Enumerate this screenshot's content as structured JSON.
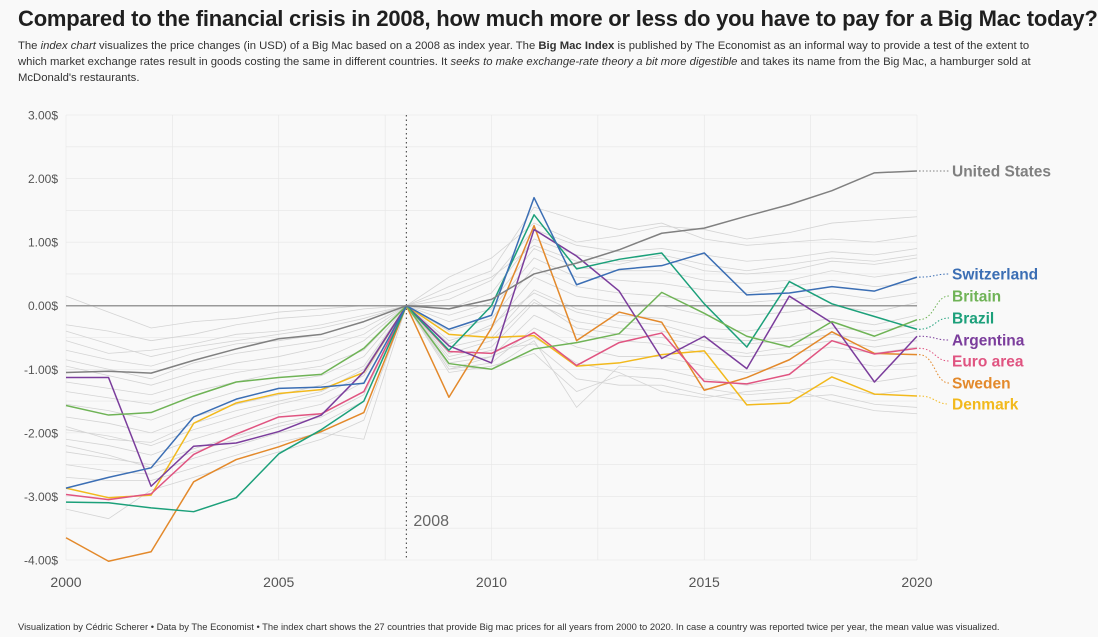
{
  "title": "Compared to the financial crisis in 2008, how much more or less do you have to pay for a Big Mac today?",
  "subtitle": {
    "p1": "The ",
    "em1": "index chart",
    "p2": " visualizes the price changes (in USD) of a Big Mac based on a 2008 as index year. The ",
    "b1": "Big Mac Index",
    "p3": " is published by The Economist as an informal way to provide a test of the extent to which market exchange rates result in goods costing the same in different countries. It ",
    "em2": "seeks to make exchange-rate theory a bit more digestible",
    "p4": " and takes its name from the Big Mac, a hamburger sold at McDonald's restaurants."
  },
  "caption": "Visualization by Cédric Scherer  •  Data by The Economist  •  The index chart shows the 27 countries that provide Big mac prices for all years from 2000 to 2020. In case a country was reported twice per year, the mean value was visualized.",
  "chart_data": {
    "type": "line",
    "xlim": [
      2000,
      2020
    ],
    "ylim": [
      -4,
      3
    ],
    "x_ticks": [
      "2000",
      "2005",
      "2010",
      "2015",
      "2020"
    ],
    "y_ticks": [
      "3.00$",
      "2.00$",
      "1.00$",
      "0.00$",
      "-1.00$",
      "-2.00$",
      "-3.00$",
      "-4.00$"
    ],
    "reference_year_label": "2008",
    "grid": true,
    "x": [
      2000,
      2001,
      2002,
      2003,
      2004,
      2005,
      2006,
      2007,
      2008,
      2009,
      2010,
      2011,
      2012,
      2013,
      2014,
      2015,
      2016,
      2017,
      2018,
      2019,
      2020
    ],
    "series": [
      {
        "name": "United States",
        "color": "#808080",
        "values": [
          -1.05,
          -1.03,
          -1.06,
          -0.86,
          -0.68,
          -0.52,
          -0.45,
          -0.25,
          0.0,
          -0.05,
          0.1,
          0.5,
          0.67,
          0.88,
          1.14,
          1.22,
          1.41,
          1.59,
          1.81,
          2.09,
          2.12
        ]
      },
      {
        "name": "Switzerland",
        "color": "#3b6eb4",
        "values": [
          -2.87,
          -2.7,
          -2.55,
          -1.75,
          -1.47,
          -1.3,
          -1.28,
          -1.22,
          0.0,
          -0.37,
          -0.15,
          1.7,
          0.33,
          0.57,
          0.63,
          0.83,
          0.17,
          0.2,
          0.3,
          0.23,
          0.45
        ]
      },
      {
        "name": "Britain",
        "color": "#6fb356",
        "values": [
          -1.57,
          -1.72,
          -1.68,
          -1.42,
          -1.2,
          -1.13,
          -1.08,
          -0.67,
          0.0,
          -0.91,
          -1.0,
          -0.68,
          -0.58,
          -0.44,
          0.21,
          -0.12,
          -0.48,
          -0.65,
          -0.25,
          -0.48,
          -0.22
        ]
      },
      {
        "name": "Brazil",
        "color": "#1ca07a",
        "values": [
          -3.09,
          -3.1,
          -3.18,
          -3.24,
          -3.02,
          -2.33,
          -1.95,
          -1.5,
          0.0,
          -0.7,
          0.0,
          1.43,
          0.58,
          0.73,
          0.83,
          0.03,
          -0.65,
          0.38,
          0.03,
          -0.17,
          -0.37
        ]
      },
      {
        "name": "Argentina",
        "color": "#7b3d9c",
        "values": [
          -1.13,
          -1.13,
          -2.84,
          -2.21,
          -2.16,
          -1.98,
          -1.72,
          -1.04,
          0.0,
          -0.63,
          -0.9,
          1.2,
          0.78,
          0.23,
          -0.83,
          -0.48,
          -0.99,
          0.15,
          -0.27,
          -1.2,
          -0.48
        ]
      },
      {
        "name": "Euro area",
        "color": "#e05481",
        "values": [
          -2.97,
          -3.05,
          -2.96,
          -2.34,
          -2.02,
          -1.75,
          -1.7,
          -1.35,
          0.0,
          -0.72,
          -0.75,
          -0.42,
          -0.94,
          -0.58,
          -0.43,
          -1.19,
          -1.23,
          -1.08,
          -0.55,
          -0.76,
          -0.67
        ]
      },
      {
        "name": "Sweden",
        "color": "#e3892b",
        "values": [
          -3.65,
          -4.02,
          -3.87,
          -2.77,
          -2.42,
          -2.22,
          -1.98,
          -1.68,
          0.0,
          -1.44,
          -0.35,
          1.26,
          -0.55,
          -0.1,
          -0.26,
          -1.33,
          -1.13,
          -0.85,
          -0.41,
          -0.75,
          -0.77
        ]
      },
      {
        "name": "Denmark",
        "color": "#f2b91c",
        "values": [
          -2.87,
          -3.02,
          -2.98,
          -1.85,
          -1.53,
          -1.38,
          -1.32,
          -1.05,
          0.0,
          -0.45,
          -0.5,
          -0.47,
          -0.95,
          -0.9,
          -0.77,
          -0.71,
          -1.56,
          -1.53,
          -1.12,
          -1.39,
          -1.42
        ]
      }
    ],
    "background_series": [
      [
        0.15,
        -0.1,
        -0.35,
        -0.25,
        -0.2,
        -0.1,
        -0.05,
        0.0,
        0.0,
        0.45,
        0.75,
        1.3,
        1.0,
        1.1,
        1.25,
        1.2,
        1.05,
        1.15,
        1.3,
        1.35,
        1.4
      ],
      [
        -0.3,
        -0.4,
        -0.55,
        -0.45,
        -0.3,
        -0.2,
        -0.15,
        -0.05,
        0.0,
        0.3,
        0.55,
        1.55,
        1.35,
        1.2,
        1.3,
        1.05,
        0.95,
        1.0,
        1.05,
        1.0,
        1.1
      ],
      [
        -0.55,
        -0.75,
        -0.7,
        -0.6,
        -0.45,
        -0.4,
        -0.3,
        -0.15,
        0.0,
        0.1,
        0.4,
        1.2,
        0.95,
        0.85,
        0.9,
        0.8,
        0.7,
        0.75,
        0.85,
        0.8,
        0.9
      ],
      [
        -0.7,
        -0.85,
        -0.95,
        -0.75,
        -0.6,
        -0.55,
        -0.45,
        -0.25,
        0.0,
        -0.05,
        0.2,
        1.05,
        0.8,
        0.7,
        0.75,
        0.55,
        0.5,
        0.55,
        0.7,
        0.65,
        0.75
      ],
      [
        -0.85,
        -1.0,
        -1.15,
        -0.9,
        -0.75,
        -0.65,
        -0.55,
        -0.35,
        0.0,
        -0.15,
        0.05,
        0.9,
        0.6,
        0.55,
        0.55,
        0.4,
        0.35,
        0.4,
        0.55,
        0.45,
        0.55
      ],
      [
        -0.95,
        -1.1,
        -1.25,
        -1.05,
        -0.9,
        -0.8,
        -0.65,
        -0.45,
        0.0,
        -0.25,
        -0.05,
        0.75,
        0.45,
        0.4,
        0.35,
        0.25,
        0.2,
        0.3,
        0.4,
        0.3,
        0.35
      ],
      [
        -1.2,
        -1.3,
        -1.4,
        -1.2,
        -1.05,
        -0.95,
        -0.85,
        -0.55,
        0.0,
        -0.4,
        -0.2,
        0.6,
        0.3,
        0.2,
        0.15,
        0.05,
        0.05,
        0.1,
        0.2,
        0.1,
        0.2
      ],
      [
        -1.35,
        -1.45,
        -1.55,
        -1.35,
        -1.2,
        -1.05,
        -0.95,
        -0.7,
        0.0,
        -0.55,
        -0.35,
        0.45,
        0.15,
        0.05,
        0.0,
        -0.15,
        -0.15,
        -0.1,
        0.0,
        -0.1,
        0.05
      ],
      [
        -1.55,
        -1.65,
        -1.8,
        -1.55,
        -1.35,
        -1.2,
        -1.1,
        -0.8,
        0.0,
        -0.65,
        -0.5,
        0.25,
        -0.05,
        -0.15,
        -0.2,
        -0.35,
        -0.4,
        -0.3,
        -0.2,
        -0.3,
        -0.15
      ],
      [
        -1.75,
        -1.85,
        -2.0,
        -1.75,
        -1.55,
        -1.4,
        -1.25,
        -0.95,
        0.0,
        -0.8,
        -0.65,
        0.05,
        -0.25,
        -0.35,
        -0.4,
        -0.55,
        -0.6,
        -0.55,
        -0.45,
        -0.55,
        -0.4
      ],
      [
        -1.95,
        -2.05,
        -2.2,
        -1.95,
        -1.75,
        -1.55,
        -1.4,
        -1.1,
        0.0,
        -0.9,
        -0.8,
        -0.15,
        -0.45,
        -0.55,
        -0.6,
        -0.75,
        -0.8,
        -0.75,
        -0.65,
        -0.75,
        -0.65
      ],
      [
        -2.1,
        -2.2,
        -2.35,
        -2.1,
        -1.9,
        -1.7,
        -1.55,
        -1.2,
        0.0,
        -1.0,
        -0.9,
        -0.35,
        -0.65,
        -0.8,
        -0.8,
        -0.95,
        -1.05,
        -0.95,
        -0.85,
        -0.95,
        -0.9
      ],
      [
        -2.3,
        -2.4,
        -2.5,
        -2.25,
        -2.05,
        -1.85,
        -1.7,
        -1.35,
        0.0,
        -0.95,
        -1.0,
        -0.55,
        -1.6,
        -0.95,
        -1.0,
        -1.15,
        -1.25,
        -1.15,
        -1.05,
        -1.2,
        -1.1
      ],
      [
        -2.5,
        -2.6,
        -2.65,
        -2.4,
        -2.2,
        -2.0,
        -1.85,
        -1.5,
        0.0,
        -1.05,
        -0.95,
        -0.75,
        -1.35,
        -1.1,
        -1.15,
        -1.3,
        -1.4,
        -1.35,
        -1.25,
        -1.4,
        -1.3
      ],
      [
        -2.7,
        -2.75,
        -2.75,
        -2.55,
        -2.35,
        -2.15,
        -2.0,
        -2.1,
        0.0,
        -0.85,
        -0.7,
        -0.6,
        -1.15,
        -1.25,
        -1.25,
        -1.4,
        -1.5,
        -1.45,
        -1.4,
        -1.55,
        -1.6
      ],
      [
        -3.2,
        -3.35,
        -2.9,
        -2.7,
        -2.5,
        -2.3,
        -2.1,
        -1.8,
        0.0,
        -1.0,
        -0.8,
        -0.5,
        -0.9,
        -1.05,
        -1.35,
        -1.45,
        -1.35,
        -1.3,
        -1.5,
        -1.65,
        -1.7
      ],
      [
        -1.9,
        -2.1,
        -2.15,
        -1.85,
        -1.65,
        -1.5,
        -1.35,
        -1.0,
        0.0,
        -0.6,
        -0.3,
        0.2,
        -0.1,
        -0.25,
        -0.3,
        -0.5,
        -0.55,
        -0.5,
        -0.35,
        -0.4,
        -0.3
      ],
      [
        -0.4,
        -0.6,
        -0.8,
        -0.65,
        -0.55,
        -0.45,
        -0.35,
        -0.2,
        0.0,
        0.2,
        0.45,
        0.95,
        0.7,
        0.65,
        0.8,
        0.65,
        0.55,
        0.65,
        0.75,
        0.7,
        0.8
      ],
      [
        -2.2,
        -2.35,
        -2.55,
        -2.3,
        -2.1,
        -1.9,
        -1.75,
        -1.4,
        0.0,
        -0.75,
        -0.55,
        0.1,
        -0.35,
        -0.45,
        -0.5,
        -0.65,
        -0.75,
        -0.65,
        -0.55,
        -0.65,
        -0.55
      ]
    ]
  }
}
